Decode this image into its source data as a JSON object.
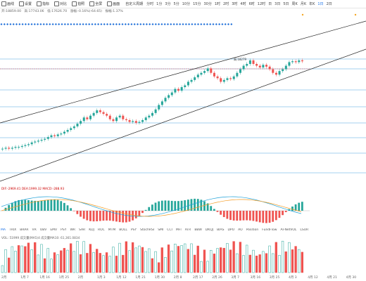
{
  "toolbar": {
    "tools": [
      {
        "label": "画线",
        "icon": "pen-icon"
      },
      {
        "label": "设置",
        "icon": "gear-icon"
      },
      {
        "label": "指标",
        "icon": "indicator-icon"
      },
      {
        "label": "对比",
        "icon": "compare-icon"
      },
      {
        "label": "拍照",
        "icon": "camera-icon"
      },
      {
        "label": "全屏",
        "icon": "fullscreen-icon"
      },
      {
        "label": "画面",
        "icon": "layout-icon"
      }
    ],
    "period_label": "自定义周期",
    "timeframes": [
      "分时",
      "1分",
      "3分",
      "5分",
      "10分",
      "15分",
      "30分",
      "1时",
      "2时",
      "3时",
      "4时",
      "6时",
      "12时",
      "日",
      "3日",
      "5日",
      "周K",
      "月K",
      "年K",
      "1日",
      "2日"
    ],
    "active_timeframe": "1日"
  },
  "ohlc": {
    "open": "开:18859.00",
    "high": "高:17743.06",
    "low": "低:17626.70",
    "change": "涨幅:-0.16%(-64.65)",
    "amplitude": "振幅:1.37%"
  },
  "chart": {
    "peak_label": "高:18279",
    "macd_text": "DIF:-2969.41  DEA:1999.32  MACD:-288.93",
    "vol_text": "VOL: 51999  成交量(MA5)4 成交量MA10: 61,361.0834"
  },
  "indicators": [
    "MA",
    "TRIX",
    "BRAR",
    "VR",
    "OBV",
    "EMV",
    "PSY",
    "WR",
    "SAR",
    "KDJ",
    "ROC",
    "MTM",
    "BOLL",
    "PSY",
    "StochRSI",
    "SMI",
    "CCI",
    "MFI",
    "ATR",
    "BBW",
    "DKQJ",
    "BIAS",
    "DPO",
    "AO",
    "Position",
    "FundFlow",
    "AI-NetVOL",
    "LSUR",
    "BASIS",
    "TVolume",
    "PTBS",
    "TTSI",
    "TTMU",
    "AI-BD",
    "MLR",
    "AI-PD",
    "AI-PDV"
  ],
  "active_indicator": "MA",
  "xaxis": {
    "labels": [
      "2月",
      "1月 7",
      "1月 16",
      "1月 25",
      "2月",
      "1月 3",
      "1月 12",
      "1月 21",
      "1月 30",
      "2月 8",
      "2月 17",
      "2月 26",
      "3月 7",
      "3月 16",
      "3月 25",
      "4月 3",
      "4月 12",
      "4月 21",
      "4月 30"
    ]
  },
  "colors": {
    "up": "#26a69a",
    "down": "#ef5350",
    "grid": "#4fa3e0",
    "dots": "#1e6fd9",
    "orange": "#f5a623"
  },
  "chart_data": {
    "type": "candlestick",
    "candles": [
      [
        1,
        5
      ],
      [
        2,
        6
      ],
      [
        3,
        5
      ],
      [
        4,
        6
      ],
      [
        5,
        7
      ],
      [
        6,
        7
      ],
      [
        7,
        8
      ],
      [
        8,
        9
      ],
      [
        9,
        10
      ],
      [
        10,
        12
      ],
      [
        11,
        13
      ],
      [
        12,
        14
      ],
      [
        13,
        15
      ],
      [
        14,
        16
      ],
      [
        15,
        18
      ],
      [
        16,
        20
      ],
      [
        17,
        19
      ],
      [
        18,
        21
      ],
      [
        19,
        22
      ],
      [
        20,
        24
      ],
      [
        21,
        26
      ],
      [
        22,
        28
      ],
      [
        23,
        30
      ],
      [
        24,
        33
      ],
      [
        25,
        36
      ],
      [
        26,
        40
      ],
      [
        27,
        38
      ],
      [
        28,
        42
      ],
      [
        29,
        45
      ],
      [
        30,
        48
      ],
      [
        31,
        46
      ],
      [
        32,
        44
      ],
      [
        33,
        42
      ],
      [
        34,
        38
      ],
      [
        35,
        36
      ],
      [
        36,
        40
      ],
      [
        37,
        42
      ],
      [
        38,
        38
      ],
      [
        39,
        37
      ],
      [
        40,
        35
      ],
      [
        41,
        36
      ],
      [
        42,
        34
      ],
      [
        43,
        35
      ],
      [
        44,
        37
      ],
      [
        45,
        40
      ],
      [
        46,
        42
      ],
      [
        47,
        45
      ],
      [
        48,
        49
      ],
      [
        49,
        54
      ],
      [
        50,
        58
      ],
      [
        51,
        62
      ],
      [
        52,
        65
      ],
      [
        53,
        68
      ],
      [
        54,
        72
      ],
      [
        55,
        70
      ],
      [
        56,
        74
      ],
      [
        57,
        76
      ],
      [
        58,
        80
      ],
      [
        59,
        82
      ],
      [
        60,
        85
      ],
      [
        61,
        88
      ],
      [
        62,
        90
      ],
      [
        63,
        92
      ],
      [
        64,
        95
      ],
      [
        65,
        90
      ],
      [
        66,
        86
      ],
      [
        67,
        84
      ],
      [
        68,
        80
      ],
      [
        69,
        82
      ],
      [
        70,
        84
      ],
      [
        71,
        83
      ],
      [
        72,
        86
      ],
      [
        73,
        90
      ],
      [
        74,
        94
      ],
      [
        75,
        98
      ],
      [
        76,
        100
      ],
      [
        77,
        104
      ],
      [
        78,
        100
      ],
      [
        79,
        98
      ],
      [
        80,
        96
      ],
      [
        81,
        99
      ],
      [
        82,
        97
      ],
      [
        83,
        94
      ],
      [
        84,
        90
      ],
      [
        85,
        88
      ],
      [
        86,
        92
      ],
      [
        87,
        94
      ],
      [
        88,
        98
      ],
      [
        89,
        102
      ],
      [
        90,
        103
      ],
      [
        91,
        102
      ],
      [
        92,
        104
      ],
      [
        93,
        103
      ]
    ]
  }
}
